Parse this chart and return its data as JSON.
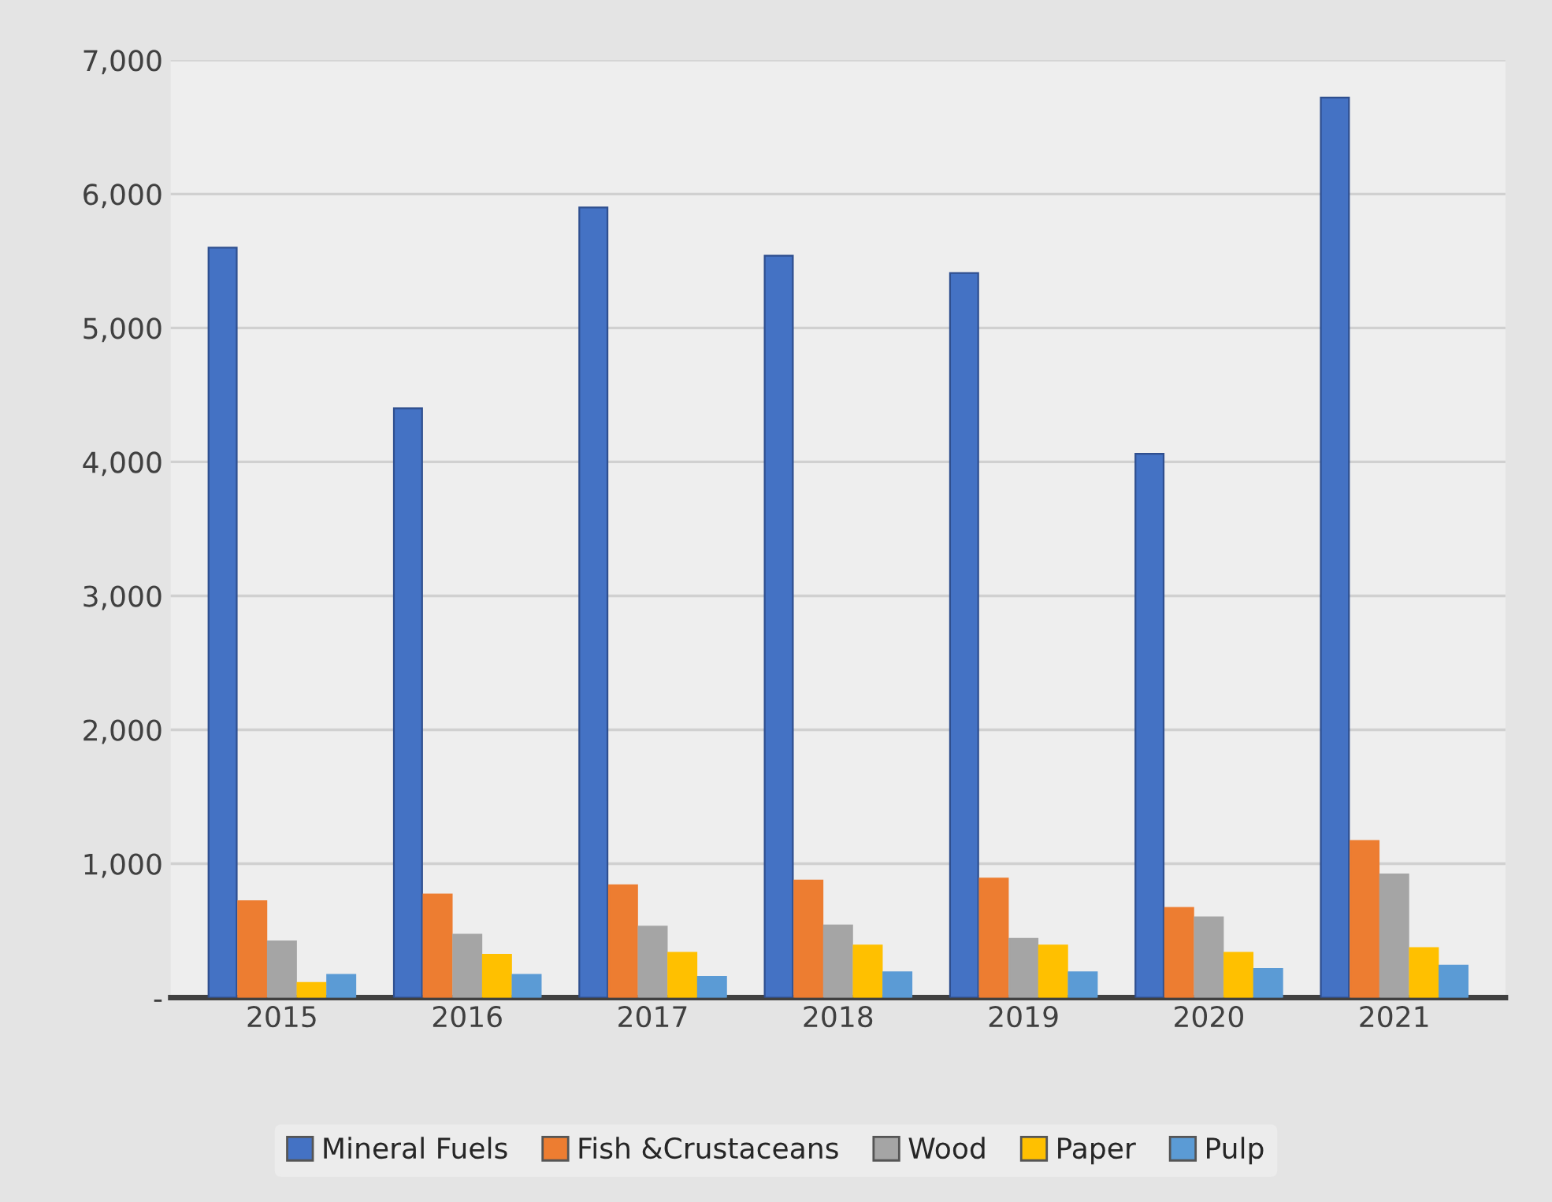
{
  "chart_data": {
    "type": "bar",
    "categories": [
      "2015",
      "2016",
      "2017",
      "2018",
      "2019",
      "2020",
      "2021"
    ],
    "series": [
      {
        "name": "Mineral Fuels",
        "color": "#4472c4",
        "values": [
          5600,
          4400,
          5900,
          5540,
          5410,
          4060,
          6720
        ]
      },
      {
        "name": "Fish &Crustaceans",
        "color": "#ed7d31",
        "values": [
          720,
          770,
          840,
          875,
          890,
          670,
          1170
        ]
      },
      {
        "name": "Wood",
        "color": "#a5a5a5",
        "values": [
          420,
          470,
          530,
          540,
          440,
          600,
          920
        ]
      },
      {
        "name": "Paper",
        "color": "#ffc000",
        "values": [
          110,
          320,
          335,
          390,
          390,
          335,
          370
        ]
      },
      {
        "name": "Pulp",
        "color": "#5b9bd5",
        "values": [
          170,
          170,
          155,
          190,
          190,
          215,
          240
        ]
      }
    ],
    "ylim": [
      0,
      7000
    ],
    "yticks": [
      {
        "value": 0,
        "label": "-"
      },
      {
        "value": 1000,
        "label": "1,000"
      },
      {
        "value": 2000,
        "label": "2,000"
      },
      {
        "value": 3000,
        "label": "3,000"
      },
      {
        "value": 4000,
        "label": "4,000"
      },
      {
        "value": 5000,
        "label": "5,000"
      },
      {
        "value": 6000,
        "label": "6,000"
      },
      {
        "value": 7000,
        "label": "7,000"
      }
    ],
    "grid": "y",
    "legend": "bottom"
  }
}
